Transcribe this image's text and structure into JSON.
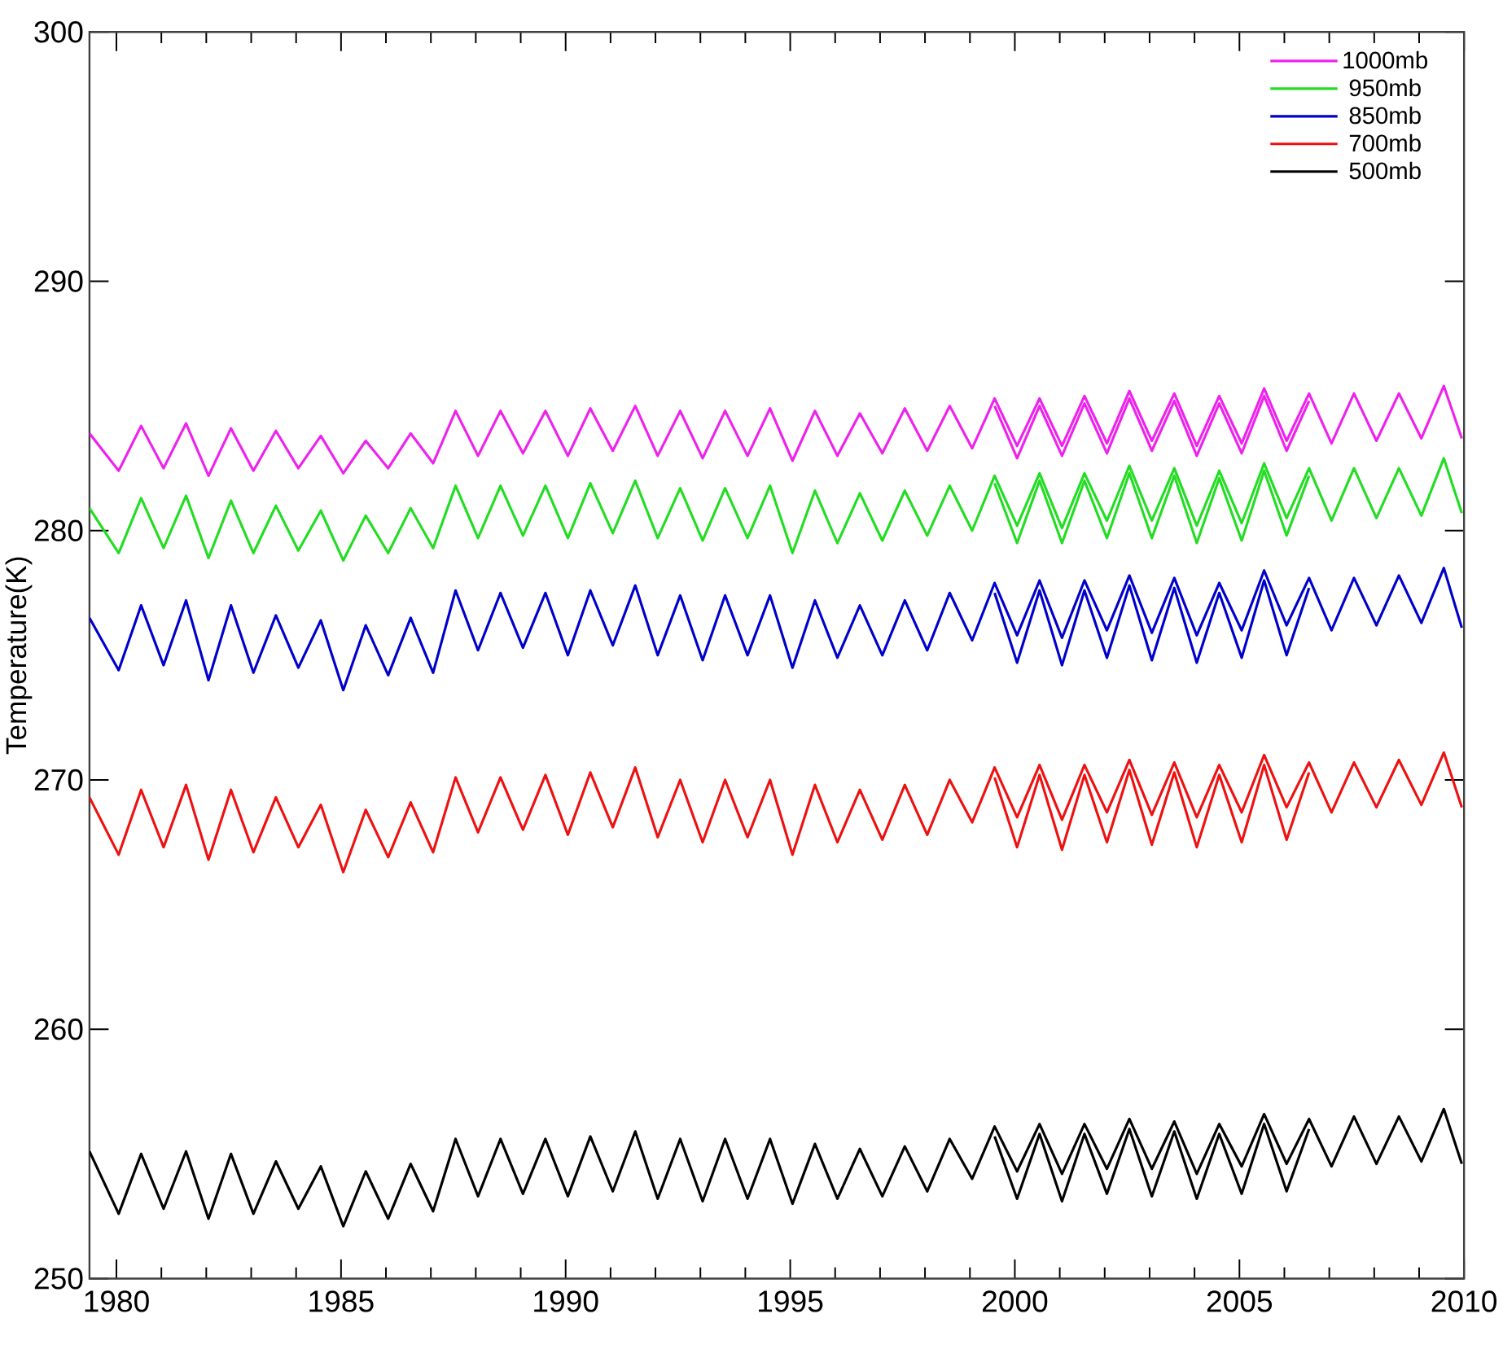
{
  "chart_data": {
    "type": "line",
    "ylabel": "Temperature(K)",
    "xlim": [
      1979.4,
      2010
    ],
    "xticks": [
      1980,
      1985,
      1990,
      1995,
      2000,
      2005,
      2010
    ],
    "ylim": [
      250,
      300
    ],
    "yticks": [
      250,
      260,
      270,
      280,
      290,
      300
    ],
    "legend": "top right",
    "x": [
      1979.4,
      1980.05,
      1980.55,
      1981.05,
      1981.55,
      1982.05,
      1982.55,
      1983.05,
      1983.55,
      1984.05,
      1984.55,
      1985.05,
      1985.55,
      1986.05,
      1986.55,
      1987.05,
      1987.55,
      1988.05,
      1988.55,
      1989.05,
      1989.55,
      1990.05,
      1990.55,
      1991.05,
      1991.55,
      1992.05,
      1992.55,
      1993.05,
      1993.55,
      1994.05,
      1994.55,
      1995.05,
      1995.55,
      1996.05,
      1996.55,
      1997.05,
      1997.55,
      1998.05,
      1998.55,
      1999.05,
      1999.55,
      2000.05,
      2000.55,
      2001.05,
      2001.55,
      2002.05,
      2002.55,
      2003.05,
      2003.55,
      2004.05,
      2004.55,
      2005.05,
      2005.55,
      2006.05,
      2006.55,
      2007.05,
      2007.55,
      2008.05,
      2008.55,
      2009.05,
      2009.55,
      2009.95
    ],
    "series": [
      {
        "name": "1000mb",
        "color": "#ee22ee",
        "values": [
          283.9,
          282.4,
          284.2,
          282.5,
          284.3,
          282.2,
          284.1,
          282.4,
          284.0,
          282.5,
          283.8,
          282.3,
          283.6,
          282.5,
          283.9,
          282.7,
          284.8,
          283.0,
          284.8,
          283.1,
          284.8,
          283.0,
          284.9,
          283.2,
          285.0,
          283.0,
          284.8,
          282.9,
          284.8,
          283.0,
          284.9,
          282.8,
          284.8,
          283.0,
          284.7,
          283.1,
          284.9,
          283.2,
          285.0,
          283.3,
          285.3,
          283.4,
          285.3,
          283.4,
          285.4,
          283.5,
          285.6,
          283.6,
          285.5,
          283.4,
          285.4,
          283.5,
          285.7,
          283.6,
          285.5,
          283.5,
          285.5,
          283.6,
          285.5,
          283.7,
          285.8,
          283.7
        ]
      },
      {
        "name": "950mb",
        "color": "#22dd22",
        "values": [
          280.9,
          279.1,
          281.3,
          279.3,
          281.4,
          278.9,
          281.2,
          279.1,
          281.0,
          279.2,
          280.8,
          278.8,
          280.6,
          279.1,
          280.9,
          279.3,
          281.8,
          279.7,
          281.8,
          279.8,
          281.8,
          279.7,
          281.9,
          279.9,
          282.0,
          279.7,
          281.7,
          279.6,
          281.7,
          279.7,
          281.8,
          279.1,
          281.6,
          279.5,
          281.5,
          279.6,
          281.6,
          279.8,
          281.8,
          280.0,
          282.2,
          280.2,
          282.3,
          280.1,
          282.3,
          280.4,
          282.6,
          280.4,
          282.5,
          280.2,
          282.4,
          280.3,
          282.7,
          280.5,
          282.5,
          280.4,
          282.5,
          280.5,
          282.5,
          280.6,
          282.9,
          280.7
        ]
      },
      {
        "name": "850mb",
        "color": "#0000cc",
        "values": [
          276.5,
          274.4,
          277.0,
          274.6,
          277.2,
          274.0,
          277.0,
          274.3,
          276.6,
          274.5,
          276.4,
          273.6,
          276.2,
          274.2,
          276.5,
          274.3,
          277.6,
          275.2,
          277.5,
          275.3,
          277.5,
          275.0,
          277.6,
          275.4,
          277.8,
          275.0,
          277.4,
          274.8,
          277.4,
          275.0,
          277.4,
          274.5,
          277.2,
          274.9,
          277.0,
          275.0,
          277.2,
          275.2,
          277.5,
          275.6,
          277.9,
          275.8,
          278.0,
          275.7,
          278.0,
          276.0,
          278.2,
          275.9,
          278.1,
          275.8,
          277.9,
          276.0,
          278.4,
          276.2,
          278.1,
          276.0,
          278.1,
          276.2,
          278.2,
          276.3,
          278.5,
          276.1
        ]
      },
      {
        "name": "700mb",
        "color": "#ee1111",
        "values": [
          269.3,
          267.0,
          269.6,
          267.3,
          269.8,
          266.8,
          269.6,
          267.1,
          269.3,
          267.3,
          269.0,
          266.3,
          268.8,
          266.9,
          269.1,
          267.1,
          270.1,
          267.9,
          270.1,
          268.0,
          270.2,
          267.8,
          270.3,
          268.1,
          270.5,
          267.7,
          270.0,
          267.5,
          270.0,
          267.7,
          270.0,
          267.0,
          269.8,
          267.5,
          269.6,
          267.6,
          269.8,
          267.8,
          270.0,
          268.3,
          270.5,
          268.5,
          270.6,
          268.4,
          270.6,
          268.7,
          270.8,
          268.6,
          270.7,
          268.5,
          270.6,
          268.7,
          271.0,
          268.9,
          270.7,
          268.7,
          270.7,
          268.9,
          270.8,
          269.0,
          271.1,
          268.9
        ]
      },
      {
        "name": "500mb",
        "color": "#000000",
        "values": [
          255.1,
          252.6,
          255.0,
          252.8,
          255.1,
          252.4,
          255.0,
          252.6,
          254.7,
          252.8,
          254.5,
          252.1,
          254.3,
          252.4,
          254.6,
          252.7,
          255.6,
          253.3,
          255.6,
          253.4,
          255.6,
          253.3,
          255.7,
          253.5,
          255.9,
          253.2,
          255.6,
          253.1,
          255.6,
          253.2,
          255.6,
          253.0,
          255.4,
          253.2,
          255.2,
          253.3,
          255.3,
          253.5,
          255.6,
          254.0,
          256.1,
          254.3,
          256.2,
          254.2,
          256.2,
          254.4,
          256.4,
          254.4,
          256.3,
          254.2,
          256.2,
          254.5,
          256.6,
          254.6,
          256.4,
          254.5,
          256.5,
          254.6,
          256.5,
          254.7,
          256.8,
          254.6
        ]
      },
      {
        "color": "#ee22ee",
        "x": [
          1999.55,
          2000.05,
          2000.55,
          2001.05,
          2001.55,
          2002.05,
          2002.55,
          2003.05,
          2003.55,
          2004.05,
          2004.55,
          2005.05,
          2005.55,
          2006.05,
          2006.55
        ],
        "values": [
          285.0,
          282.9,
          285.0,
          283.0,
          285.1,
          283.1,
          285.3,
          283.2,
          285.2,
          283.0,
          285.1,
          283.1,
          285.4,
          283.2,
          285.2
        ]
      },
      {
        "color": "#22dd22",
        "x": [
          1999.55,
          2000.05,
          2000.55,
          2001.05,
          2001.55,
          2002.05,
          2002.55,
          2003.05,
          2003.55,
          2004.05,
          2004.55,
          2005.05,
          2005.55,
          2006.05,
          2006.55
        ],
        "values": [
          281.9,
          279.5,
          282.0,
          279.5,
          282.0,
          279.7,
          282.3,
          279.7,
          282.2,
          279.5,
          282.1,
          279.6,
          282.4,
          279.8,
          282.2
        ]
      },
      {
        "color": "#0000cc",
        "x": [
          1999.55,
          2000.05,
          2000.55,
          2001.05,
          2001.55,
          2002.05,
          2002.55,
          2003.05,
          2003.55,
          2004.05,
          2004.55,
          2005.05,
          2005.55,
          2006.05,
          2006.55
        ],
        "values": [
          277.5,
          274.7,
          277.6,
          274.6,
          277.6,
          274.9,
          277.8,
          274.8,
          277.7,
          274.7,
          277.5,
          274.9,
          278.0,
          275.0,
          277.7
        ]
      },
      {
        "color": "#ee1111",
        "x": [
          1999.55,
          2000.05,
          2000.55,
          2001.05,
          2001.55,
          2002.05,
          2002.55,
          2003.05,
          2003.55,
          2004.05,
          2004.55,
          2005.05,
          2005.55,
          2006.05,
          2006.55
        ],
        "values": [
          270.1,
          267.3,
          270.2,
          267.2,
          270.2,
          267.5,
          270.4,
          267.4,
          270.3,
          267.3,
          270.2,
          267.5,
          270.6,
          267.6,
          270.3
        ]
      },
      {
        "color": "#000000",
        "x": [
          1999.55,
          2000.05,
          2000.55,
          2001.05,
          2001.55,
          2002.05,
          2002.55,
          2003.05,
          2003.55,
          2004.05,
          2004.55,
          2005.05,
          2005.55,
          2006.05,
          2006.55
        ],
        "values": [
          255.7,
          253.2,
          255.8,
          253.1,
          255.8,
          253.4,
          256.0,
          253.3,
          255.9,
          253.2,
          255.8,
          253.4,
          256.2,
          253.5,
          256.0
        ]
      }
    ]
  }
}
